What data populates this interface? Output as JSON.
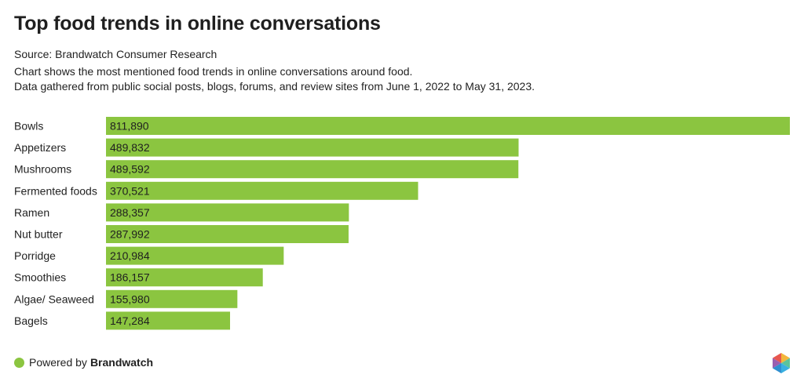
{
  "header": {
    "title": "Top food trends in online conversations",
    "source": "Source: Brandwatch Consumer Research",
    "description_line1": "Chart shows the most mentioned food trends in online conversations around food.",
    "description_line2": "Data gathered from public social posts, blogs, forums, and review sites from June 1, 2022 to May 31, 2023."
  },
  "footer": {
    "powered_by": "Powered by",
    "brand": "Brandwatch",
    "logo_icon": "brandwatch-hexagon-icon"
  },
  "colors": {
    "bar": "#8bc540",
    "text": "#222222",
    "background": "#ffffff"
  },
  "chart_data": {
    "type": "bar",
    "orientation": "horizontal",
    "categories": [
      "Bowls",
      "Appetizers",
      "Mushrooms",
      "Fermented foods",
      "Ramen",
      "Nut butter",
      "Porridge",
      "Smoothies",
      "Algae/ Seaweed",
      "Bagels"
    ],
    "values": [
      811890,
      489832,
      489592,
      370521,
      288357,
      287992,
      210984,
      186157,
      155980,
      147284
    ],
    "value_labels": [
      "811,890",
      "489,832",
      "489,592",
      "370,521",
      "288,357",
      "287,992",
      "210,984",
      "186,157",
      "155,980",
      "147,284"
    ],
    "title": "Top food trends in online conversations",
    "xlabel": "",
    "ylabel": "",
    "xlim": [
      0,
      811890
    ],
    "grid": false,
    "legend": "none"
  }
}
